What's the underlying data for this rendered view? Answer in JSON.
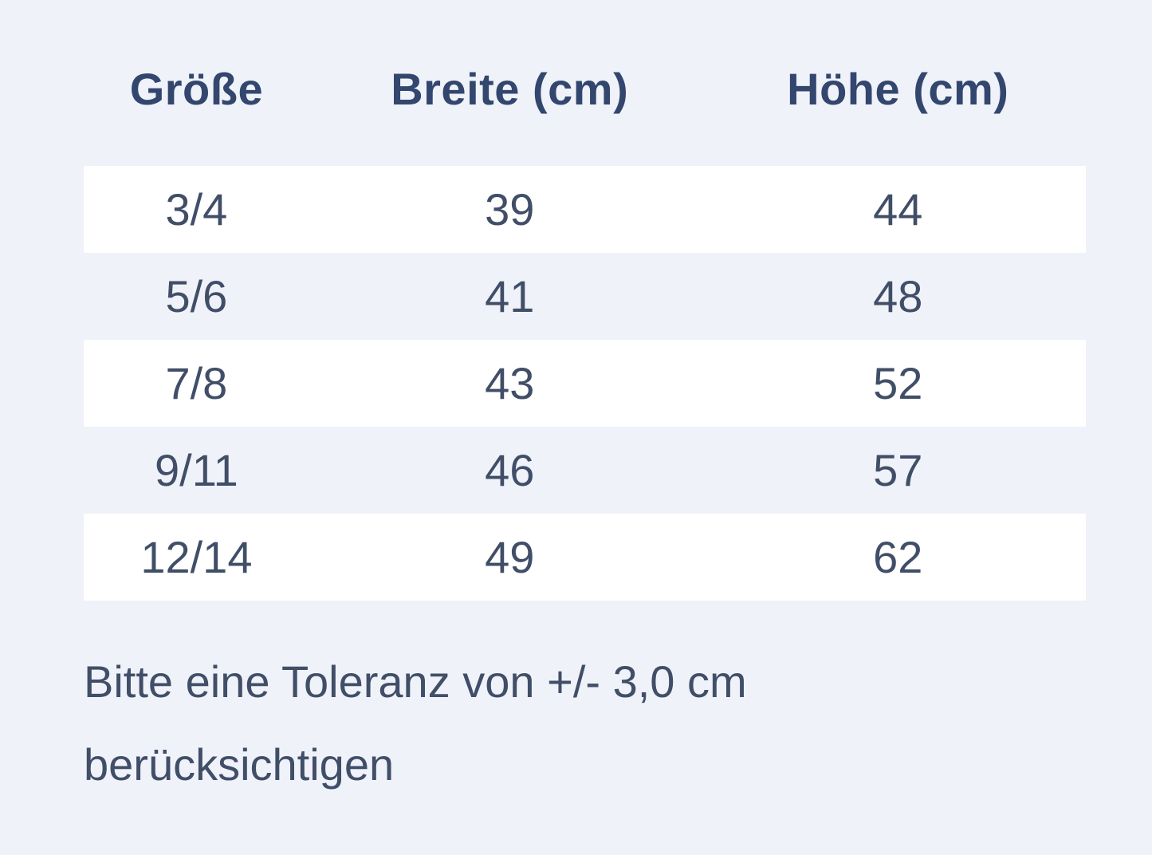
{
  "colors": {
    "page_bg": "#eff2f8",
    "stripe_row_bg": "#ffffff",
    "heading_text": "#33466e",
    "body_text": "#414e68"
  },
  "table": {
    "headers": [
      "Größe",
      "Breite (cm)",
      "Höhe (cm)"
    ],
    "rows": [
      [
        "3/4",
        "39",
        "44"
      ],
      [
        "5/6",
        "41",
        "48"
      ],
      [
        "7/8",
        "43",
        "52"
      ],
      [
        "9/11",
        "46",
        "57"
      ],
      [
        "12/14",
        "49",
        "62"
      ]
    ]
  },
  "note": "Bitte eine Toleranz von +/- 3,0 cm berücksichtigen",
  "chart_data": {
    "type": "table",
    "title": "",
    "columns": [
      "Größe",
      "Breite (cm)",
      "Höhe (cm)"
    ],
    "rows": [
      {
        "groesse": "3/4",
        "breite_cm": 39,
        "hoehe_cm": 44
      },
      {
        "groesse": "5/6",
        "breite_cm": 41,
        "hoehe_cm": 48
      },
      {
        "groesse": "7/8",
        "breite_cm": 43,
        "hoehe_cm": 52
      },
      {
        "groesse": "9/11",
        "breite_cm": 46,
        "hoehe_cm": 57
      },
      {
        "groesse": "12/14",
        "breite_cm": 49,
        "hoehe_cm": 62
      }
    ],
    "annotations": [
      "Bitte eine Toleranz von +/- 3,0 cm berücksichtigen"
    ],
    "layout": {
      "stripe_pattern": "odd-rows-white",
      "alignment": "center"
    }
  }
}
